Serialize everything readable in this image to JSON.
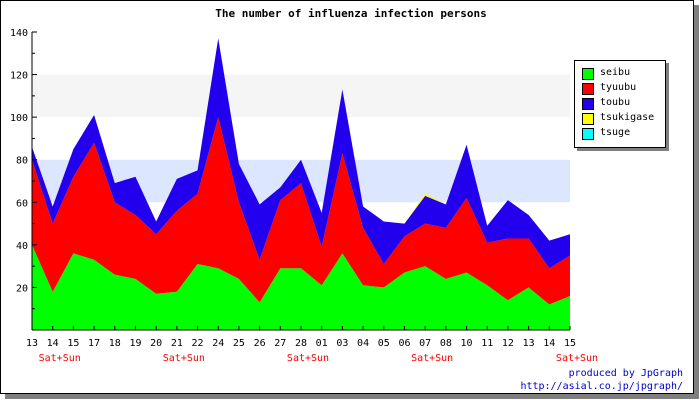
{
  "chart_data": {
    "type": "area",
    "title": "The number of influenza infection persons",
    "xlabel": "",
    "ylabel": "",
    "ylim": [
      0,
      140
    ],
    "y_ticks": [
      20,
      40,
      60,
      80,
      100,
      120,
      140
    ],
    "grid": "horizontal bands",
    "stacked": true,
    "legend_position": "right",
    "categories": [
      "13",
      "14",
      "15",
      "17",
      "18",
      "19",
      "20",
      "21",
      "22",
      "24",
      "25",
      "26",
      "27",
      "28",
      "01",
      "03",
      "04",
      "05",
      "06",
      "07",
      "08",
      "10",
      "11",
      "12",
      "13",
      "14",
      "15"
    ],
    "weekend_label": "Sat+Sun",
    "weekend_after_categories": [
      "14",
      "21",
      "28",
      "07",
      "15"
    ],
    "series": [
      {
        "name": "seibu",
        "color": "#00ff00",
        "values": [
          40,
          18,
          36,
          33,
          26,
          24,
          17,
          18,
          31,
          29,
          24,
          13,
          29,
          29,
          21,
          36,
          21,
          20,
          27,
          30,
          24,
          27,
          21,
          14,
          20,
          12,
          16
        ]
      },
      {
        "name": "tyuubu",
        "color": "#ff0000",
        "values": [
          40,
          32,
          36,
          55,
          34,
          30,
          28,
          38,
          33,
          71,
          36,
          20,
          32,
          40,
          18,
          47,
          27,
          11,
          17,
          20,
          24,
          35,
          20,
          29,
          23,
          17,
          19
        ]
      },
      {
        "name": "toubu",
        "color": "#2200ee",
        "values": [
          6,
          8,
          13,
          13,
          9,
          18,
          6,
          15,
          11,
          37,
          18,
          26,
          6,
          11,
          16,
          30,
          10,
          20,
          6,
          13,
          11,
          25,
          8,
          18,
          11,
          13,
          10
        ]
      },
      {
        "name": "tsukigase",
        "color": "#ffff00",
        "values": [
          0,
          0,
          0,
          0,
          0,
          0,
          0,
          0,
          0,
          0,
          0,
          0,
          0,
          0,
          0,
          0,
          0,
          0,
          0,
          1,
          0,
          0,
          0,
          0,
          0,
          0,
          0
        ]
      },
      {
        "name": "tsuge",
        "color": "#00ffff",
        "values": [
          0,
          0,
          0,
          0,
          0,
          0,
          0,
          0,
          0,
          0,
          0,
          0,
          0,
          0,
          0,
          0,
          0,
          0,
          0,
          0,
          0,
          0,
          0,
          0,
          0,
          0,
          0
        ]
      }
    ]
  },
  "credit": {
    "line1": "produced by JpGraph",
    "line2": "http://asial.co.jp/jpgraph/"
  },
  "colors": {
    "band_light": "#f5f5f5",
    "band_blue": "#dde6ff",
    "weekend_label": "#ff0000",
    "credit_text": "#0000cc"
  }
}
